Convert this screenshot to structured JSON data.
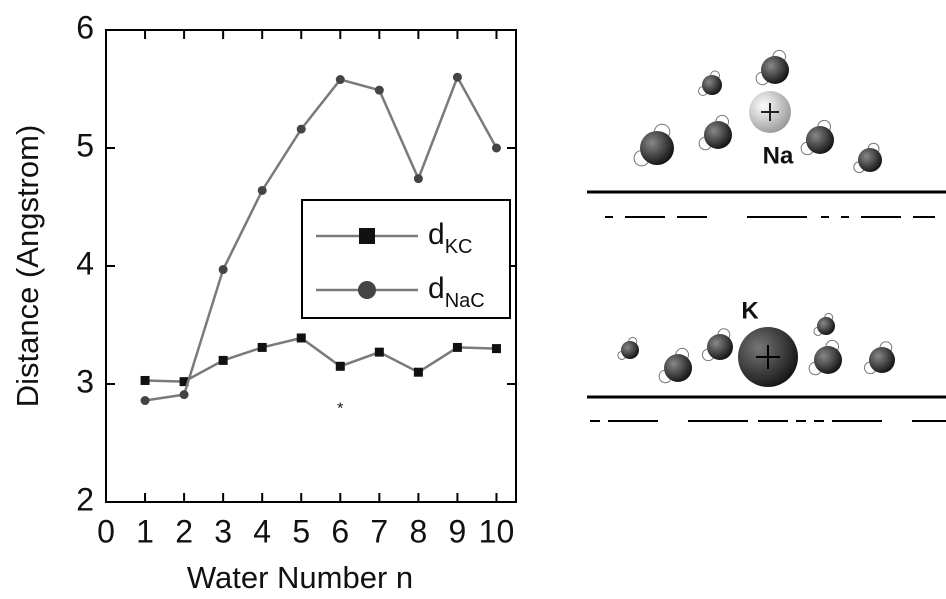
{
  "chart_data": {
    "type": "line",
    "x_label": "Water Number n",
    "y_label": "Distance (Angstrom)",
    "x": [
      1,
      2,
      3,
      4,
      5,
      6,
      7,
      8,
      9,
      10
    ],
    "series": [
      {
        "name": "d",
        "name_sub": "KC",
        "marker": "square",
        "color": "#7a7a7a",
        "marker_color": "#111111",
        "values": [
          3.03,
          3.02,
          3.2,
          3.31,
          3.39,
          3.15,
          3.27,
          3.1,
          3.31,
          3.3
        ]
      },
      {
        "name": "d",
        "name_sub": "NaC",
        "marker": "circle",
        "color": "#7a7a7a",
        "marker_color": "#444444",
        "values": [
          2.86,
          2.91,
          3.97,
          4.64,
          5.16,
          5.58,
          5.49,
          4.74,
          5.6,
          5.0
        ]
      }
    ],
    "annotations": [
      {
        "text": "*",
        "x": 6,
        "y": 2.81
      }
    ],
    "xlim": [
      0,
      10.5
    ],
    "xticks": [
      0,
      1,
      2,
      3,
      4,
      5,
      6,
      7,
      8,
      9,
      10
    ],
    "ylim": [
      2,
      6
    ],
    "yticks": [
      2,
      3,
      4,
      5,
      6
    ]
  },
  "diagram": {
    "labels": [
      "Na",
      "K"
    ]
  }
}
